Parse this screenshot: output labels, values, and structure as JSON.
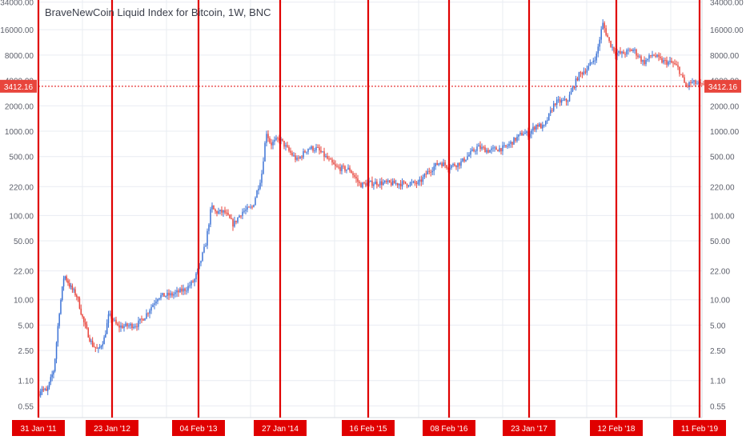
{
  "chart_data": {
    "type": "candlestick",
    "title": "BraveNewCoin Liquid Index for Bitcoin, 1W, BNC",
    "y_scale": "log",
    "ylim": [
      0.4,
      36000
    ],
    "y_ticks": [
      "34000.00",
      "16000.00",
      "8000.00",
      "4000.00",
      "2000.00",
      "1000.00",
      "500.00",
      "220.00",
      "100.00",
      "50.00",
      "22.00",
      "10.00",
      "5.00",
      "2.50",
      "1.10",
      "0.55"
    ],
    "last_price": "3412.16",
    "colors": {
      "up": "#3d73d6",
      "down": "#e8453c",
      "marker": "#e00000",
      "grid": "#e9ecf2",
      "axis_text": "#5d606b"
    },
    "x_markers": [
      "31 Jan '11",
      "23 Jan '12",
      "04 Feb '13",
      "27 Jan '14",
      "16 Feb '15",
      "08 Feb '16",
      "23 Jan '17",
      "12 Feb '18",
      "11 Feb '19"
    ],
    "price_path": [
      [
        "2011-01-31",
        0.75
      ],
      [
        "2011-02-20",
        0.9
      ],
      [
        "2011-03-15",
        0.8
      ],
      [
        "2011-04-20",
        1.5
      ],
      [
        "2011-05-15",
        7
      ],
      [
        "2011-06-08",
        20
      ],
      [
        "2011-07-10",
        14
      ],
      [
        "2011-08-10",
        11
      ],
      [
        "2011-09-10",
        5.5
      ],
      [
        "2011-10-20",
        3
      ],
      [
        "2011-11-20",
        2.5
      ],
      [
        "2011-12-20",
        3.5
      ],
      [
        "2012-01-10",
        6.5
      ],
      [
        "2012-01-23",
        6.2
      ],
      [
        "2012-02-20",
        4.8
      ],
      [
        "2012-04-01",
        4.9
      ],
      [
        "2012-05-15",
        5.1
      ],
      [
        "2012-06-20",
        6.5
      ],
      [
        "2012-08-15",
        11
      ],
      [
        "2012-10-15",
        11.5
      ],
      [
        "2012-12-15",
        13.5
      ],
      [
        "2013-01-20",
        17
      ],
      [
        "2013-02-04",
        22
      ],
      [
        "2013-03-10",
        45
      ],
      [
        "2013-04-05",
        130
      ],
      [
        "2013-04-20",
        110
      ],
      [
        "2013-06-01",
        110
      ],
      [
        "2013-07-10",
        78
      ],
      [
        "2013-08-15",
        110
      ],
      [
        "2013-10-01",
        125
      ],
      [
        "2013-11-10",
        300
      ],
      [
        "2013-12-01",
        1000
      ],
      [
        "2013-12-20",
        700
      ],
      [
        "2014-01-27",
        820
      ],
      [
        "2014-03-10",
        580
      ],
      [
        "2014-04-15",
        450
      ],
      [
        "2014-06-01",
        630
      ],
      [
        "2014-07-10",
        620
      ],
      [
        "2014-08-15",
        500
      ],
      [
        "2014-10-01",
        370
      ],
      [
        "2014-12-01",
        350
      ],
      [
        "2015-01-15",
        230
      ],
      [
        "2015-02-16",
        240
      ],
      [
        "2015-04-01",
        245
      ],
      [
        "2015-06-15",
        240
      ],
      [
        "2015-08-15",
        240
      ],
      [
        "2015-10-01",
        240
      ],
      [
        "2015-11-10",
        330
      ],
      [
        "2016-01-01",
        430
      ],
      [
        "2016-02-08",
        380
      ],
      [
        "2016-04-01",
        420
      ],
      [
        "2016-06-15",
        650
      ],
      [
        "2016-08-01",
        590
      ],
      [
        "2016-10-15",
        640
      ],
      [
        "2016-12-31",
        960
      ],
      [
        "2017-01-23",
        920
      ],
      [
        "2017-03-01",
        1200
      ],
      [
        "2017-04-01",
        1100
      ],
      [
        "2017-05-20",
        2200
      ],
      [
        "2017-07-15",
        2300
      ],
      [
        "2017-09-01",
        4600
      ],
      [
        "2017-10-15",
        5700
      ],
      [
        "2017-11-20",
        8000
      ],
      [
        "2017-12-17",
        19000
      ],
      [
        "2018-01-15",
        11500
      ],
      [
        "2018-02-12",
        8500
      ],
      [
        "2018-03-15",
        8300
      ],
      [
        "2018-05-01",
        9300
      ],
      [
        "2018-06-15",
        6500
      ],
      [
        "2018-07-25",
        8200
      ],
      [
        "2018-09-01",
        6800
      ],
      [
        "2018-10-20",
        6400
      ],
      [
        "2018-11-15",
        5500
      ],
      [
        "2018-12-15",
        3400
      ],
      [
        "2019-01-10",
        3800
      ],
      [
        "2019-02-11",
        3600
      ],
      [
        "2019-03-01",
        3412
      ]
    ]
  }
}
